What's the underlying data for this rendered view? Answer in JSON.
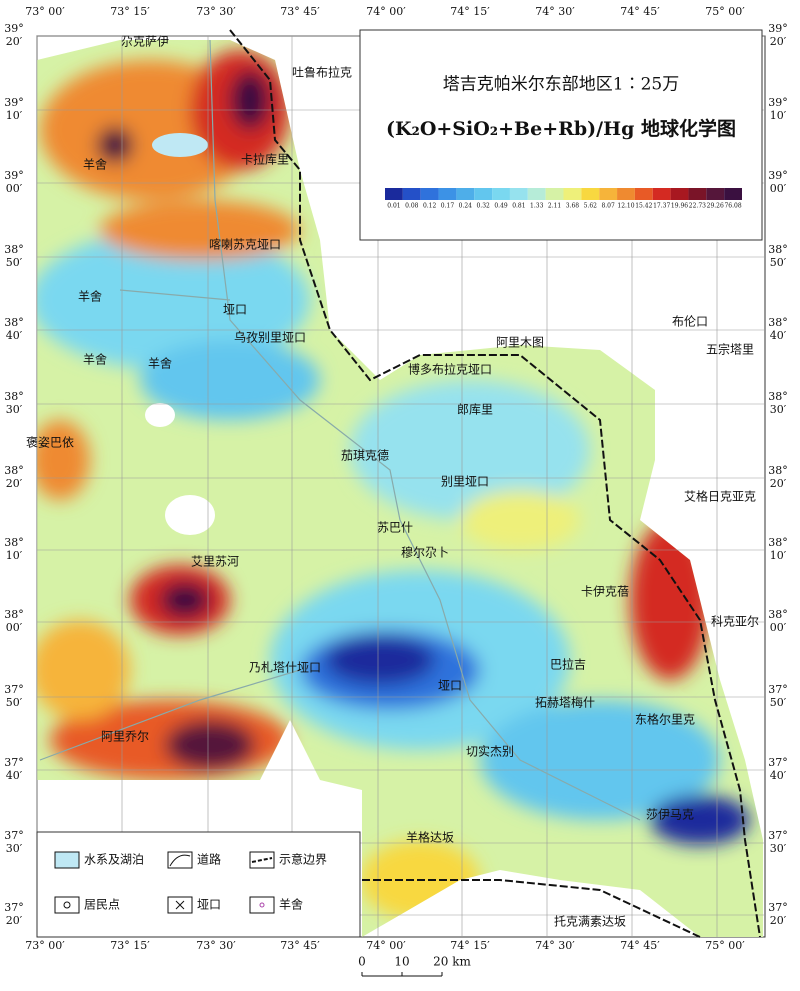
{
  "map": {
    "title": "塔吉克帕米尔东部地区1∶25万",
    "subtitle": "(K₂O+SiO₂+Be+Rb)/Hg 地球化学图",
    "colorbar": {
      "labels": [
        "0.01",
        "0.08",
        "0.12",
        "0.17",
        "0.24",
        "0.32",
        "0.49",
        "0.81",
        "1.33",
        "2.11",
        "3.68",
        "5.62",
        "8.07",
        "12.10",
        "15.42",
        "17.37",
        "19.96",
        "22.73",
        "29.26",
        "76.08"
      ],
      "colors": [
        "#1a2a9c",
        "#2450c8",
        "#2f72dc",
        "#3c92e6",
        "#4eaee9",
        "#62c6ee",
        "#7ad8f0",
        "#96e2ee",
        "#b6ecd8",
        "#d6f2a6",
        "#eef07a",
        "#f8d840",
        "#f6b43a",
        "#ef8a30",
        "#e85a26",
        "#d42a22",
        "#a81820",
        "#7a1428",
        "#55163a",
        "#3a1040"
      ]
    },
    "lon_labels": [
      "73° 00′",
      "73° 15′",
      "73° 30′",
      "73° 45′",
      "74° 00′",
      "74° 15′",
      "74° 30′",
      "74° 45′",
      "75° 00′"
    ],
    "lat_labels": [
      {
        "deg": "39°",
        "min": "20′"
      },
      {
        "deg": "39°",
        "min": "10′"
      },
      {
        "deg": "39°",
        "min": "00′"
      },
      {
        "deg": "38°",
        "min": "50′"
      },
      {
        "deg": "38°",
        "min": "40′"
      },
      {
        "deg": "38°",
        "min": "30′"
      },
      {
        "deg": "38°",
        "min": "20′"
      },
      {
        "deg": "38°",
        "min": "10′"
      },
      {
        "deg": "38°",
        "min": "00′"
      },
      {
        "deg": "37°",
        "min": "50′"
      },
      {
        "deg": "37°",
        "min": "40′"
      },
      {
        "deg": "37°",
        "min": "30′"
      },
      {
        "deg": "37°",
        "min": "20′"
      }
    ],
    "places": [
      "尕克萨伊",
      "吐鲁布拉克",
      "羊舍",
      "卡拉库里",
      "喀喇苏克垭口",
      "羊舍",
      "垭口",
      "乌孜别里垭口",
      "羊舍",
      "羊舍",
      "博多布拉克垭口",
      "阿里木图",
      "布伦口",
      "五宗塔里",
      "郎库里",
      "褒姿巴依",
      "茄琪克德",
      "别里垭口",
      "艾格日克亚克",
      "苏巴什",
      "穆尔尕卜",
      "艾里苏河",
      "卡伊克蓓",
      "科克亚尔",
      "乃札塔什垭口",
      "巴拉吉",
      "垭口",
      "拓赫塔梅什",
      "阿里乔尔",
      "东格尔里克",
      "切实杰别",
      "莎伊马克",
      "羊格达坂",
      "托克满素达坂"
    ],
    "legend": [
      "水系及湖泊",
      "道路",
      "示意边界",
      "居民点",
      "垭口",
      "羊舍"
    ],
    "scale": [
      "0",
      "10",
      "20 km"
    ]
  }
}
